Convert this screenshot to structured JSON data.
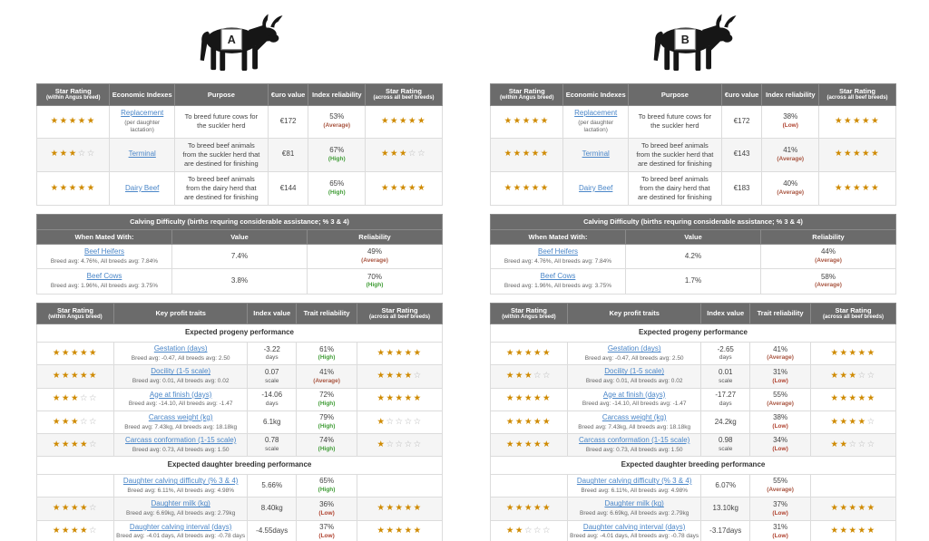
{
  "colors": {
    "header_bg": "#6b6b6b",
    "header_text": "#ffffff",
    "star_filled": "#cf8a00",
    "star_empty": "#b5b5b5",
    "link": "#4a86c8",
    "reliability_high": "#3f9c35",
    "reliability_average": "#a8543f",
    "reliability_low": "#b04330",
    "row_alt_bg": "#f5f5f5"
  },
  "panels": [
    {
      "label": "A",
      "econ": {
        "h": [
          {
            "t": "Star Rating",
            "s": "(within Angus breed)"
          },
          {
            "t": "Economic Indexes",
            "s": ""
          },
          {
            "t": "Purpose",
            "s": ""
          },
          {
            "t": "€uro value",
            "s": ""
          },
          {
            "t": "Index reliability",
            "s": ""
          },
          {
            "t": "Star Rating",
            "s": "(across all beef breeds)"
          }
        ],
        "rows": [
          {
            "sw": {
              "filled": 5,
              "total": 5
            },
            "link": "Replacement",
            "sub": "(per daughter lactation)",
            "purpose": "To breed future cows for the suckler herd",
            "euro": "€172",
            "rel": "53%",
            "level": "(Average)",
            "lvl": "avg",
            "sa": {
              "filled": 5,
              "total": 5
            },
            "cls": ""
          },
          {
            "sw": {
              "filled": 3,
              "total": 5
            },
            "link": "Terminal",
            "sub": "",
            "purpose": "To breed beef animals from the suckler herd that are destined for finishing",
            "euro": "€81",
            "rel": "67%",
            "level": "(High)",
            "lvl": "high",
            "sa": {
              "filled": 3,
              "total": 5
            },
            "cls": "alt"
          },
          {
            "sw": {
              "filled": 5,
              "total": 5
            },
            "link": "Dairy Beef",
            "sub": "",
            "purpose": "To breed beef animals from the dairy herd that are destined for finishing",
            "euro": "€144",
            "rel": "65%",
            "level": "(High)",
            "lvl": "high",
            "sa": {
              "filled": 5,
              "total": 5
            },
            "cls": ""
          }
        ]
      },
      "calving": {
        "title": "Calving Difficulty (births requring considerable assistance; % 3 & 4)",
        "h": [
          "When Mated With:",
          "Value",
          "Reliability"
        ],
        "rows": [
          {
            "link": "Beef Heifers",
            "sub": "Breed avg: 4.76%, All breeds avg: 7.84%",
            "value": "7.4%",
            "rel": "49%",
            "level": "(Average)",
            "lvl": "avg",
            "cls": ""
          },
          {
            "link": "Beef Cows",
            "sub": "Breed avg: 1.96%, All breeds avg: 3.75%",
            "value": "3.8%",
            "rel": "70%",
            "level": "(High)",
            "lvl": "high",
            "cls": ""
          }
        ]
      },
      "traits": {
        "h": [
          {
            "t": "Star Rating",
            "s": "(within Angus breed)"
          },
          {
            "t": "Key profit traits",
            "s": ""
          },
          {
            "t": "Index value",
            "s": ""
          },
          {
            "t": "Trait reliability",
            "s": ""
          },
          {
            "t": "Star Rating",
            "s": "(across all beef breeds)"
          }
        ],
        "sec1": "Expected progeny performance",
        "rows1": [
          {
            "sw": {
              "filled": 5,
              "total": 5
            },
            "link": "Gestation (days)",
            "sub": "Breed avg: -0.47, All breeds avg: 2.50",
            "value": "-3.22",
            "unit": "days",
            "rel": "61%",
            "level": "(High)",
            "lvl": "high",
            "sa": {
              "filled": 5,
              "total": 5
            },
            "cls": ""
          },
          {
            "sw": {
              "filled": 5,
              "total": 5
            },
            "link": "Docility (1-5 scale)",
            "sub": "Breed avg: 0.01, All breeds avg: 0.02",
            "value": "0.07",
            "unit": "scale",
            "rel": "41%",
            "level": "(Average)",
            "lvl": "avg",
            "sa": {
              "filled": 4,
              "total": 5
            },
            "cls": "alt"
          },
          {
            "sw": {
              "filled": 3,
              "total": 5
            },
            "link": "Age at finish (days)",
            "sub": "Breed avg: -14.10, All breeds avg: -1.47",
            "value": "-14.06",
            "unit": "days",
            "rel": "72%",
            "level": "(High)",
            "lvl": "high",
            "sa": {
              "filled": 5,
              "total": 5
            },
            "cls": ""
          },
          {
            "sw": {
              "filled": 3,
              "total": 5
            },
            "link": "Carcass weight (kg)",
            "sub": "Breed avg: 7.43kg, All breeds avg: 18.18kg",
            "value": "6.1kg",
            "unit": "",
            "rel": "79%",
            "level": "(High)",
            "lvl": "high",
            "sa": {
              "filled": 1,
              "total": 5
            },
            "cls": ""
          },
          {
            "sw": {
              "filled": 4,
              "total": 5
            },
            "link": "Carcass conformation (1-15 scale)",
            "sub": "Breed avg: 0.73, All breeds avg: 1.50",
            "value": "0.78",
            "unit": "scale",
            "rel": "74%",
            "level": "(High)",
            "lvl": "high",
            "sa": {
              "filled": 1,
              "total": 5
            },
            "cls": "alt"
          }
        ],
        "sec2": "Expected daughter breeding performance",
        "rows2": [
          {
            "sw": {
              "filled": 0,
              "total": 0
            },
            "link": "Daughter calving difficulty (% 3 & 4)",
            "sub": "Breed avg: 6.11%, All breeds avg: 4.98%",
            "value": "5.66%",
            "unit": "",
            "rel": "65%",
            "level": "(High)",
            "lvl": "high",
            "sa": {
              "filled": 0,
              "total": 0
            },
            "cls": ""
          },
          {
            "sw": {
              "filled": 4,
              "total": 5
            },
            "link": "Daughter milk (kg)",
            "sub": "Breed avg: 6.69kg, All breeds avg: 2.79kg",
            "value": "8.40kg",
            "unit": "",
            "rel": "36%",
            "level": "(Low)",
            "lvl": "low",
            "sa": {
              "filled": 5,
              "total": 5
            },
            "cls": "alt"
          },
          {
            "sw": {
              "filled": 4,
              "total": 5
            },
            "link": "Daughter calving interval (days)",
            "sub": "Breed avg: -4.01 days, All breeds avg: -0.78 days",
            "value": "-4.55days",
            "unit": "",
            "rel": "37%",
            "level": "(Low)",
            "lvl": "low",
            "sa": {
              "filled": 5,
              "total": 5
            },
            "cls": ""
          }
        ]
      }
    },
    {
      "label": "B",
      "econ": {
        "h": [
          {
            "t": "Star Rating",
            "s": "(within Angus breed)"
          },
          {
            "t": "Economic Indexes",
            "s": ""
          },
          {
            "t": "Purpose",
            "s": ""
          },
          {
            "t": "€uro value",
            "s": ""
          },
          {
            "t": "Index reliability",
            "s": ""
          },
          {
            "t": "Star Rating",
            "s": "(across all beef breeds)"
          }
        ],
        "rows": [
          {
            "sw": {
              "filled": 5,
              "total": 5
            },
            "link": "Replacement",
            "sub": "(per daughter lactation)",
            "purpose": "To breed future cows for the suckler herd",
            "euro": "€172",
            "rel": "38%",
            "level": "(Low)",
            "lvl": "low",
            "sa": {
              "filled": 5,
              "total": 5
            },
            "cls": ""
          },
          {
            "sw": {
              "filled": 5,
              "total": 5
            },
            "link": "Terminal",
            "sub": "",
            "purpose": "To breed beef animals from the suckler herd that are destined for finishing",
            "euro": "€143",
            "rel": "41%",
            "level": "(Average)",
            "lvl": "avg",
            "sa": {
              "filled": 5,
              "total": 5
            },
            "cls": "alt"
          },
          {
            "sw": {
              "filled": 5,
              "total": 5
            },
            "link": "Dairy Beef",
            "sub": "",
            "purpose": "To breed beef animals from the dairy herd that are destined for finishing",
            "euro": "€183",
            "rel": "40%",
            "level": "(Average)",
            "lvl": "avg",
            "sa": {
              "filled": 5,
              "total": 5
            },
            "cls": ""
          }
        ]
      },
      "calving": {
        "title": "Calving Difficulty (births requring considerable assistance; % 3 & 4)",
        "h": [
          "When Mated With:",
          "Value",
          "Reliability"
        ],
        "rows": [
          {
            "link": "Beef Heifers",
            "sub": "Breed avg: 4.76%, All breeds avg: 7.84%",
            "value": "4.2%",
            "rel": "44%",
            "level": "(Average)",
            "lvl": "avg",
            "cls": ""
          },
          {
            "link": "Beef Cows",
            "sub": "Breed avg: 1.96%, All breeds avg: 3.75%",
            "value": "1.7%",
            "rel": "58%",
            "level": "(Average)",
            "lvl": "avg",
            "cls": ""
          }
        ]
      },
      "traits": {
        "h": [
          {
            "t": "Star Rating",
            "s": "(within Angus breed)"
          },
          {
            "t": "Key profit traits",
            "s": ""
          },
          {
            "t": "Index value",
            "s": ""
          },
          {
            "t": "Trait reliability",
            "s": ""
          },
          {
            "t": "Star Rating",
            "s": "(across all beef breeds)"
          }
        ],
        "sec1": "Expected progeny performance",
        "rows1": [
          {
            "sw": {
              "filled": 5,
              "total": 5
            },
            "link": "Gestation (days)",
            "sub": "Breed avg: -0.47, All breeds avg: 2.50",
            "value": "-2.65",
            "unit": "days",
            "rel": "41%",
            "level": "(Average)",
            "lvl": "avg",
            "sa": {
              "filled": 5,
              "total": 5
            },
            "cls": ""
          },
          {
            "sw": {
              "filled": 3,
              "total": 5
            },
            "link": "Docility (1-5 scale)",
            "sub": "Breed avg: 0.01, All breeds avg: 0.02",
            "value": "0.01",
            "unit": "scale",
            "rel": "31%",
            "level": "(Low)",
            "lvl": "low",
            "sa": {
              "filled": 3,
              "total": 5
            },
            "cls": "alt"
          },
          {
            "sw": {
              "filled": 5,
              "total": 5
            },
            "link": "Age at finish (days)",
            "sub": "Breed avg: -14.10, All breeds avg: -1.47",
            "value": "-17.27",
            "unit": "days",
            "rel": "55%",
            "level": "(Average)",
            "lvl": "avg",
            "sa": {
              "filled": 5,
              "total": 5
            },
            "cls": ""
          },
          {
            "sw": {
              "filled": 5,
              "total": 5
            },
            "link": "Carcass weight (kg)",
            "sub": "Breed avg: 7.43kg, All breeds avg: 18.18kg",
            "value": "24.2kg",
            "unit": "",
            "rel": "38%",
            "level": "(Low)",
            "lvl": "low",
            "sa": {
              "filled": 4,
              "total": 5
            },
            "cls": ""
          },
          {
            "sw": {
              "filled": 5,
              "total": 5
            },
            "link": "Carcass conformation (1-15 scale)",
            "sub": "Breed avg: 0.73, All breeds avg: 1.50",
            "value": "0.98",
            "unit": "scale",
            "rel": "34%",
            "level": "(Low)",
            "lvl": "low",
            "sa": {
              "filled": 2,
              "total": 5
            },
            "cls": "alt"
          }
        ],
        "sec2": "Expected daughter breeding performance",
        "rows2": [
          {
            "sw": {
              "filled": 0,
              "total": 0
            },
            "link": "Daughter calving difficulty (% 3 & 4)",
            "sub": "Breed avg: 6.11%, All breeds avg: 4.98%",
            "value": "6.07%",
            "unit": "",
            "rel": "55%",
            "level": "(Average)",
            "lvl": "avg",
            "sa": {
              "filled": 0,
              "total": 0
            },
            "cls": ""
          },
          {
            "sw": {
              "filled": 5,
              "total": 5
            },
            "link": "Daughter milk (kg)",
            "sub": "Breed avg: 6.69kg, All breeds avg: 2.79kg",
            "value": "13.10kg",
            "unit": "",
            "rel": "37%",
            "level": "(Low)",
            "lvl": "low",
            "sa": {
              "filled": 5,
              "total": 5
            },
            "cls": "alt"
          },
          {
            "sw": {
              "filled": 2,
              "total": 5
            },
            "link": "Daughter calving interval (days)",
            "sub": "Breed avg: -4.01 days, All breeds avg: -0.78 days",
            "value": "-3.17days",
            "unit": "",
            "rel": "31%",
            "level": "(Low)",
            "lvl": "low",
            "sa": {
              "filled": 5,
              "total": 5
            },
            "cls": ""
          }
        ]
      }
    }
  ]
}
